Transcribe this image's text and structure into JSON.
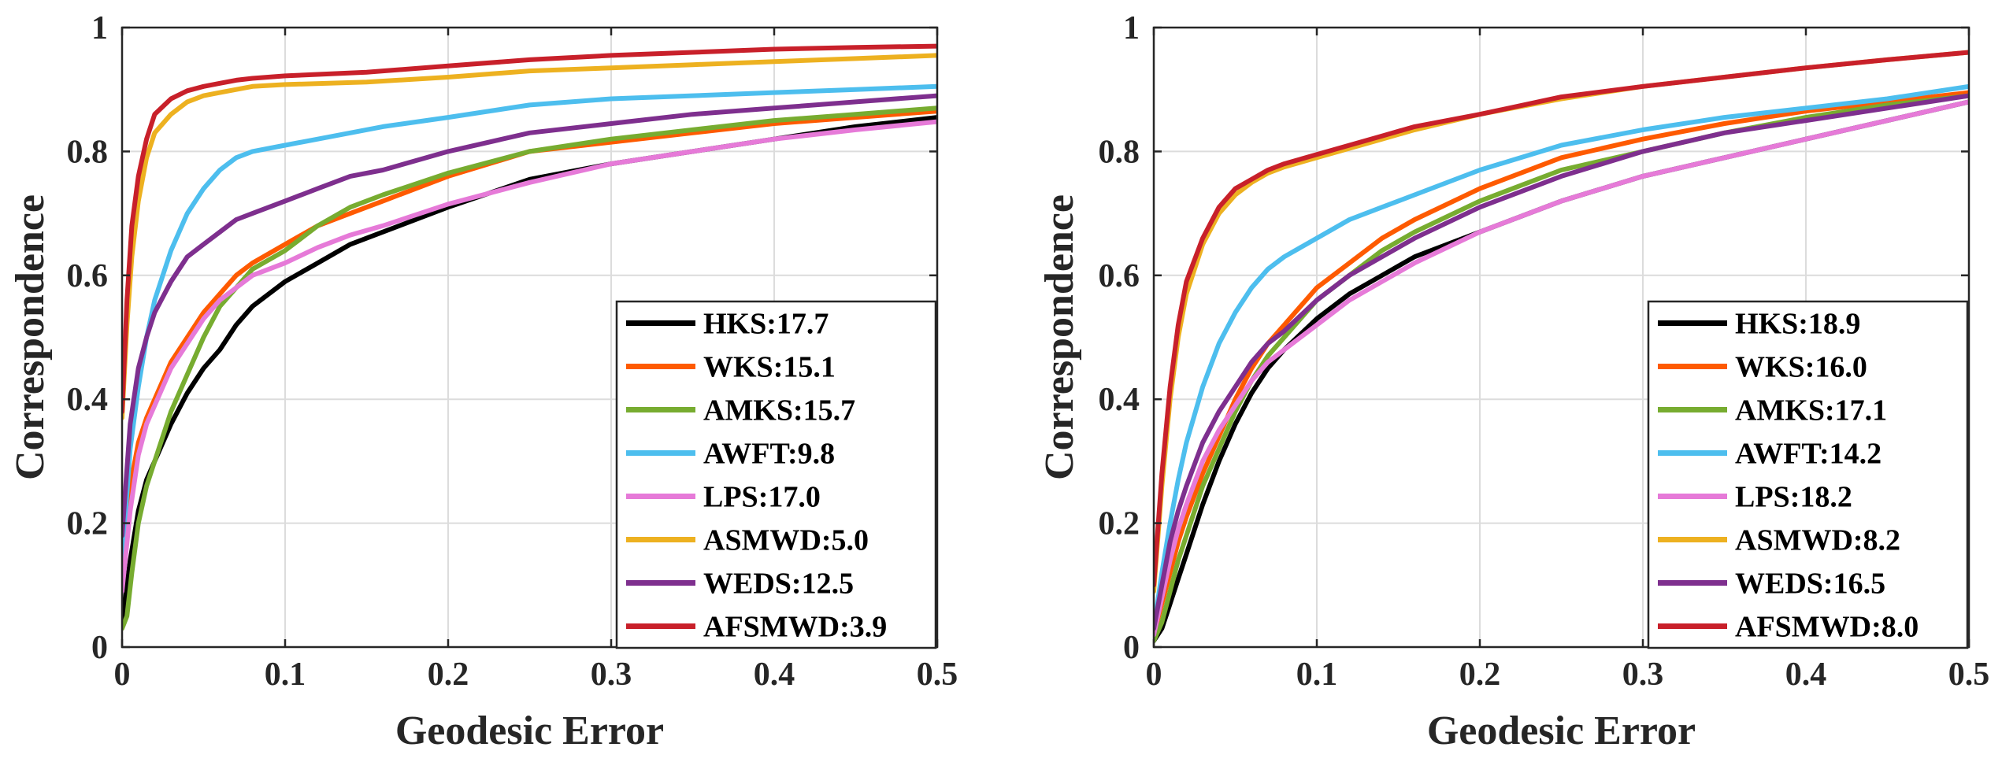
{
  "chart_data": [
    {
      "type": "line",
      "title": "",
      "xlabel": "Geodesic Error",
      "ylabel": "Correspondence",
      "xlim": [
        0,
        0.5
      ],
      "ylim": [
        0,
        1
      ],
      "xticks": [
        0,
        0.1,
        0.2,
        0.3,
        0.4,
        0.5
      ],
      "xtick_labels": [
        "0",
        "0.1",
        "0.2",
        "0.3",
        "0.4",
        "0.5"
      ],
      "yticks": [
        0,
        0.2,
        0.4,
        0.6,
        0.8,
        1
      ],
      "ytick_labels": [
        "0",
        "0.2",
        "0.4",
        "0.6",
        "0.8",
        "1"
      ],
      "grid": true,
      "legend_position": "bottom-right",
      "series": [
        {
          "name": "HKS:17.7",
          "color": "#000000",
          "x": [
            0,
            0.005,
            0.01,
            0.015,
            0.02,
            0.03,
            0.04,
            0.05,
            0.06,
            0.07,
            0.08,
            0.1,
            0.12,
            0.14,
            0.16,
            0.2,
            0.25,
            0.3,
            0.35,
            0.4,
            0.45,
            0.5
          ],
          "y": [
            0.04,
            0.14,
            0.22,
            0.27,
            0.3,
            0.36,
            0.41,
            0.45,
            0.48,
            0.52,
            0.55,
            0.59,
            0.62,
            0.65,
            0.67,
            0.71,
            0.755,
            0.78,
            0.8,
            0.82,
            0.84,
            0.855
          ]
        },
        {
          "name": "WKS:15.1",
          "color": "#fe5a00",
          "x": [
            0,
            0.005,
            0.01,
            0.015,
            0.02,
            0.03,
            0.04,
            0.05,
            0.06,
            0.07,
            0.08,
            0.1,
            0.12,
            0.14,
            0.16,
            0.2,
            0.25,
            0.3,
            0.35,
            0.4,
            0.45,
            0.5
          ],
          "y": [
            0.18,
            0.26,
            0.33,
            0.37,
            0.4,
            0.46,
            0.5,
            0.54,
            0.57,
            0.6,
            0.62,
            0.65,
            0.68,
            0.7,
            0.72,
            0.76,
            0.8,
            0.815,
            0.83,
            0.845,
            0.855,
            0.865
          ]
        },
        {
          "name": "AMKS:15.7",
          "color": "#77ac30",
          "x": [
            0,
            0.003,
            0.006,
            0.01,
            0.015,
            0.02,
            0.03,
            0.04,
            0.05,
            0.06,
            0.07,
            0.08,
            0.1,
            0.12,
            0.14,
            0.16,
            0.2,
            0.25,
            0.3,
            0.35,
            0.4,
            0.45,
            0.5
          ],
          "y": [
            0.03,
            0.05,
            0.12,
            0.2,
            0.26,
            0.3,
            0.38,
            0.44,
            0.5,
            0.55,
            0.58,
            0.61,
            0.64,
            0.68,
            0.71,
            0.73,
            0.765,
            0.8,
            0.82,
            0.835,
            0.85,
            0.86,
            0.87
          ]
        },
        {
          "name": "AWFT:9.8",
          "color": "#4dbeee",
          "x": [
            0,
            0.005,
            0.01,
            0.015,
            0.02,
            0.03,
            0.04,
            0.05,
            0.06,
            0.07,
            0.08,
            0.1,
            0.12,
            0.14,
            0.16,
            0.2,
            0.25,
            0.3,
            0.35,
            0.4,
            0.45,
            0.5
          ],
          "y": [
            0.14,
            0.32,
            0.42,
            0.5,
            0.56,
            0.64,
            0.7,
            0.74,
            0.77,
            0.79,
            0.8,
            0.81,
            0.82,
            0.83,
            0.84,
            0.855,
            0.875,
            0.885,
            0.89,
            0.895,
            0.9,
            0.905
          ]
        },
        {
          "name": "LPS:17.0",
          "color": "#e67ad8",
          "x": [
            0,
            0.005,
            0.01,
            0.015,
            0.02,
            0.03,
            0.04,
            0.05,
            0.06,
            0.07,
            0.08,
            0.1,
            0.12,
            0.14,
            0.16,
            0.2,
            0.25,
            0.3,
            0.35,
            0.4,
            0.45,
            0.5
          ],
          "y": [
            0.09,
            0.22,
            0.31,
            0.36,
            0.39,
            0.45,
            0.49,
            0.53,
            0.56,
            0.58,
            0.6,
            0.62,
            0.645,
            0.665,
            0.68,
            0.715,
            0.75,
            0.78,
            0.8,
            0.82,
            0.835,
            0.848
          ]
        },
        {
          "name": "ASMWD:5.0",
          "color": "#edb120",
          "x": [
            0,
            0.003,
            0.006,
            0.01,
            0.015,
            0.02,
            0.03,
            0.04,
            0.05,
            0.06,
            0.07,
            0.08,
            0.1,
            0.15,
            0.2,
            0.25,
            0.3,
            0.35,
            0.4,
            0.45,
            0.5
          ],
          "y": [
            0.37,
            0.52,
            0.63,
            0.72,
            0.79,
            0.83,
            0.86,
            0.88,
            0.89,
            0.895,
            0.9,
            0.905,
            0.908,
            0.912,
            0.92,
            0.93,
            0.935,
            0.94,
            0.945,
            0.95,
            0.955
          ]
        },
        {
          "name": "WEDS:12.5",
          "color": "#7e2f8e",
          "x": [
            0,
            0.005,
            0.01,
            0.015,
            0.02,
            0.03,
            0.04,
            0.05,
            0.06,
            0.07,
            0.08,
            0.1,
            0.12,
            0.14,
            0.16,
            0.2,
            0.25,
            0.3,
            0.35,
            0.4,
            0.45,
            0.5
          ],
          "y": [
            0.18,
            0.36,
            0.45,
            0.5,
            0.54,
            0.59,
            0.63,
            0.65,
            0.67,
            0.69,
            0.7,
            0.72,
            0.74,
            0.76,
            0.77,
            0.8,
            0.83,
            0.845,
            0.86,
            0.87,
            0.88,
            0.89
          ]
        },
        {
          "name": "AFSMWD:3.9",
          "color": "#c8202a",
          "x": [
            0,
            0.003,
            0.006,
            0.01,
            0.015,
            0.02,
            0.03,
            0.04,
            0.05,
            0.06,
            0.07,
            0.08,
            0.1,
            0.15,
            0.2,
            0.25,
            0.3,
            0.35,
            0.4,
            0.45,
            0.5
          ],
          "y": [
            0.38,
            0.56,
            0.68,
            0.76,
            0.82,
            0.86,
            0.885,
            0.898,
            0.905,
            0.91,
            0.915,
            0.918,
            0.922,
            0.928,
            0.938,
            0.948,
            0.955,
            0.96,
            0.965,
            0.968,
            0.97
          ]
        }
      ]
    },
    {
      "type": "line",
      "title": "",
      "xlabel": "Geodesic Error",
      "ylabel": "Correspondence",
      "xlim": [
        0,
        0.5
      ],
      "ylim": [
        0,
        1
      ],
      "xticks": [
        0,
        0.1,
        0.2,
        0.3,
        0.4,
        0.5
      ],
      "xtick_labels": [
        "0",
        "0.1",
        "0.2",
        "0.3",
        "0.4",
        "0.5"
      ],
      "yticks": [
        0,
        0.2,
        0.4,
        0.6,
        0.8,
        1
      ],
      "ytick_labels": [
        "0",
        "0.2",
        "0.4",
        "0.6",
        "0.8",
        "1"
      ],
      "grid": true,
      "legend_position": "bottom-right",
      "series": [
        {
          "name": "HKS:18.9",
          "color": "#000000",
          "x": [
            0,
            0.005,
            0.01,
            0.015,
            0.02,
            0.03,
            0.04,
            0.05,
            0.06,
            0.07,
            0.08,
            0.1,
            0.12,
            0.14,
            0.16,
            0.2,
            0.25,
            0.3,
            0.35,
            0.4,
            0.45,
            0.5
          ],
          "y": [
            0.01,
            0.03,
            0.07,
            0.11,
            0.15,
            0.23,
            0.3,
            0.36,
            0.41,
            0.45,
            0.48,
            0.53,
            0.57,
            0.6,
            0.63,
            0.67,
            0.72,
            0.76,
            0.79,
            0.82,
            0.85,
            0.88
          ]
        },
        {
          "name": "WKS:16.0",
          "color": "#fe5a00",
          "x": [
            0,
            0.005,
            0.01,
            0.015,
            0.02,
            0.03,
            0.04,
            0.05,
            0.06,
            0.07,
            0.08,
            0.1,
            0.12,
            0.14,
            0.16,
            0.2,
            0.25,
            0.3,
            0.35,
            0.4,
            0.45,
            0.5
          ],
          "y": [
            0.02,
            0.07,
            0.12,
            0.17,
            0.21,
            0.28,
            0.34,
            0.4,
            0.45,
            0.49,
            0.52,
            0.58,
            0.62,
            0.66,
            0.69,
            0.74,
            0.79,
            0.82,
            0.845,
            0.865,
            0.88,
            0.895
          ]
        },
        {
          "name": "AMKS:17.1",
          "color": "#77ac30",
          "x": [
            0,
            0.005,
            0.01,
            0.015,
            0.02,
            0.03,
            0.04,
            0.05,
            0.06,
            0.07,
            0.08,
            0.1,
            0.12,
            0.14,
            0.16,
            0.2,
            0.25,
            0.3,
            0.35,
            0.4,
            0.45,
            0.5
          ],
          "y": [
            0.01,
            0.04,
            0.09,
            0.14,
            0.18,
            0.26,
            0.32,
            0.38,
            0.43,
            0.47,
            0.5,
            0.56,
            0.6,
            0.64,
            0.67,
            0.72,
            0.77,
            0.8,
            0.83,
            0.855,
            0.875,
            0.89
          ]
        },
        {
          "name": "AWFT:14.2",
          "color": "#4dbeee",
          "x": [
            0,
            0.005,
            0.01,
            0.015,
            0.02,
            0.03,
            0.04,
            0.05,
            0.06,
            0.07,
            0.08,
            0.1,
            0.12,
            0.14,
            0.16,
            0.2,
            0.25,
            0.3,
            0.35,
            0.4,
            0.45,
            0.5
          ],
          "y": [
            0.03,
            0.12,
            0.2,
            0.27,
            0.33,
            0.42,
            0.49,
            0.54,
            0.58,
            0.61,
            0.63,
            0.66,
            0.69,
            0.71,
            0.73,
            0.77,
            0.81,
            0.835,
            0.855,
            0.87,
            0.885,
            0.905
          ]
        },
        {
          "name": "LPS:18.2",
          "color": "#e67ad8",
          "x": [
            0,
            0.005,
            0.01,
            0.015,
            0.02,
            0.03,
            0.04,
            0.05,
            0.06,
            0.07,
            0.08,
            0.1,
            0.12,
            0.14,
            0.16,
            0.2,
            0.25,
            0.3,
            0.35,
            0.4,
            0.45,
            0.5
          ],
          "y": [
            0.02,
            0.08,
            0.14,
            0.19,
            0.23,
            0.3,
            0.35,
            0.39,
            0.43,
            0.46,
            0.48,
            0.52,
            0.56,
            0.59,
            0.62,
            0.67,
            0.72,
            0.76,
            0.79,
            0.82,
            0.85,
            0.88
          ]
        },
        {
          "name": "ASMWD:8.2",
          "color": "#edb120",
          "x": [
            0,
            0.005,
            0.01,
            0.015,
            0.02,
            0.03,
            0.04,
            0.05,
            0.06,
            0.07,
            0.08,
            0.1,
            0.12,
            0.14,
            0.16,
            0.2,
            0.25,
            0.3,
            0.35,
            0.4,
            0.45,
            0.5
          ],
          "y": [
            0.09,
            0.26,
            0.4,
            0.5,
            0.57,
            0.65,
            0.7,
            0.73,
            0.75,
            0.765,
            0.775,
            0.79,
            0.805,
            0.82,
            0.835,
            0.86,
            0.885,
            0.905,
            0.92,
            0.935,
            0.948,
            0.96
          ]
        },
        {
          "name": "WEDS:16.5",
          "color": "#7e2f8e",
          "x": [
            0,
            0.005,
            0.01,
            0.015,
            0.02,
            0.03,
            0.04,
            0.05,
            0.06,
            0.07,
            0.08,
            0.1,
            0.12,
            0.14,
            0.16,
            0.2,
            0.25,
            0.3,
            0.35,
            0.4,
            0.45,
            0.5
          ],
          "y": [
            0.03,
            0.1,
            0.17,
            0.22,
            0.26,
            0.33,
            0.38,
            0.42,
            0.46,
            0.49,
            0.51,
            0.56,
            0.6,
            0.63,
            0.66,
            0.71,
            0.76,
            0.8,
            0.83,
            0.85,
            0.87,
            0.89
          ]
        },
        {
          "name": "AFSMWD:8.0",
          "color": "#c8202a",
          "x": [
            0,
            0.005,
            0.01,
            0.015,
            0.02,
            0.03,
            0.04,
            0.05,
            0.06,
            0.07,
            0.08,
            0.1,
            0.12,
            0.14,
            0.16,
            0.2,
            0.25,
            0.3,
            0.35,
            0.4,
            0.45,
            0.5
          ],
          "y": [
            0.1,
            0.28,
            0.42,
            0.52,
            0.59,
            0.66,
            0.71,
            0.74,
            0.755,
            0.77,
            0.78,
            0.795,
            0.81,
            0.825,
            0.84,
            0.86,
            0.888,
            0.905,
            0.92,
            0.935,
            0.948,
            0.96
          ]
        }
      ]
    }
  ]
}
